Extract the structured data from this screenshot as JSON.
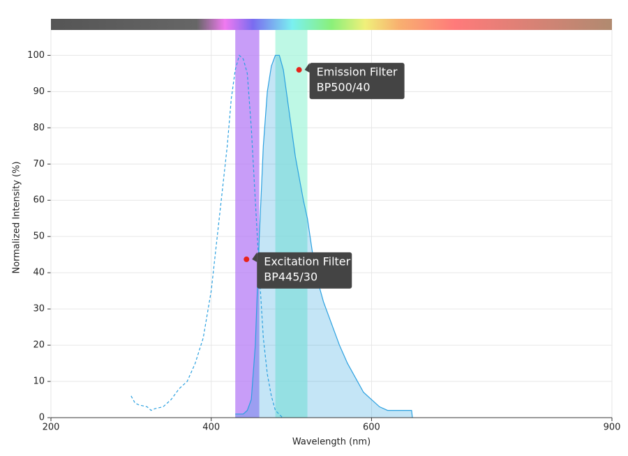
{
  "chart_data": {
    "type": "spectra",
    "xlabel": "Wavelength (nm)",
    "ylabel": "Normalized Intensity (%)",
    "xlim": [
      200,
      900
    ],
    "ylim": [
      0,
      107
    ],
    "xticks": [
      200,
      400,
      600,
      900
    ],
    "yticks": [
      0,
      10,
      20,
      30,
      40,
      50,
      60,
      70,
      80,
      90,
      100
    ],
    "grid": true,
    "filters": [
      {
        "range": [
          430,
          460
        ],
        "color": "#b57cf5"
      },
      {
        "range": [
          480,
          520
        ],
        "color": "#a8f5dc"
      }
    ],
    "series": [
      {
        "style": "dashed",
        "color": "#2aa0e0",
        "x": [
          300,
          305,
          310,
          320,
          325,
          330,
          340,
          350,
          360,
          370,
          380,
          390,
          400,
          410,
          420,
          425,
          430,
          435,
          440,
          445,
          450,
          455,
          460,
          465,
          470,
          475,
          480,
          489
        ],
        "values": [
          6,
          4,
          3.5,
          3,
          2,
          2.5,
          3,
          5,
          8,
          10,
          15,
          22,
          35,
          55,
          75,
          88,
          96,
          100,
          99,
          95,
          80,
          60,
          40,
          22,
          12,
          6,
          2,
          0
        ]
      },
      {
        "style": "filled",
        "color": "#2aa0e0",
        "x": [
          430,
          440,
          445,
          450,
          455,
          460,
          465,
          470,
          475,
          480,
          485,
          490,
          495,
          500,
          505,
          510,
          515,
          520,
          530,
          540,
          550,
          560,
          570,
          580,
          590,
          600,
          610,
          620,
          650,
          651
        ],
        "values": [
          1,
          1,
          2,
          5,
          20,
          50,
          75,
          90,
          97,
          100,
          100,
          96,
          88,
          80,
          72,
          66,
          60,
          55,
          40,
          32,
          26,
          20,
          15,
          11,
          7,
          5,
          3,
          2,
          2,
          0
        ]
      }
    ],
    "annotations": [
      {
        "x": 444,
        "y": 43.7,
        "lines": [
          "Excitation Filter",
          "BP445/30"
        ]
      },
      {
        "x": 509.6,
        "y": 96,
        "lines": [
          "Emission Filter",
          "BP500/40"
        ]
      }
    ]
  }
}
